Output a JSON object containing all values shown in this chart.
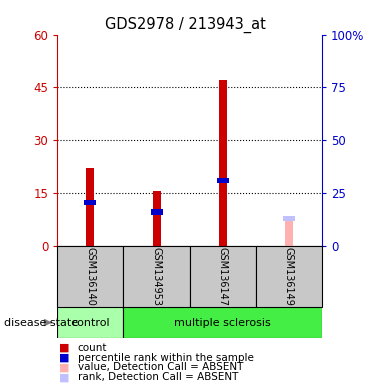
{
  "title": "GDS2978 / 213943_at",
  "samples": [
    "GSM136140",
    "GSM134953",
    "GSM136147",
    "GSM136149"
  ],
  "count_values": [
    22,
    15.5,
    47,
    0
  ],
  "rank_values": [
    20.5,
    16,
    31,
    0
  ],
  "absent_count_values": [
    0,
    0,
    0,
    8
  ],
  "absent_rank_values": [
    0,
    0,
    0,
    13
  ],
  "ylim_left": [
    0,
    60
  ],
  "ylim_right": [
    0,
    100
  ],
  "yticks_left": [
    0,
    15,
    30,
    45,
    60
  ],
  "yticks_right": [
    0,
    25,
    50,
    75,
    100
  ],
  "ytick_labels_right": [
    "0",
    "25",
    "50",
    "75",
    "100%"
  ],
  "color_count": "#cc0000",
  "color_rank": "#0000cc",
  "color_absent_count": "#ffb0b0",
  "color_absent_rank": "#c0c0ff",
  "color_control_bg": "#aaffaa",
  "color_ms_bg": "#44ee44",
  "color_gray_bg": "#c8c8c8",
  "legend_items": [
    {
      "label": "count",
      "color": "#cc0000"
    },
    {
      "label": "percentile rank within the sample",
      "color": "#0000cc"
    },
    {
      "label": "value, Detection Call = ABSENT",
      "color": "#ffb0b0"
    },
    {
      "label": "rank, Detection Call = ABSENT",
      "color": "#c0c0ff"
    }
  ],
  "disease_label": "disease state"
}
